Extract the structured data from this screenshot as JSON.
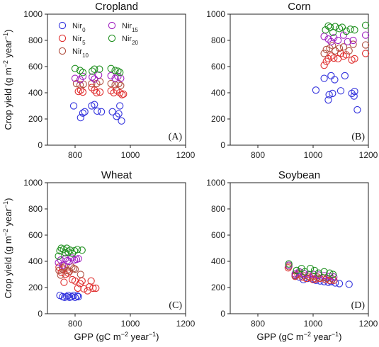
{
  "chart_data": [
    {
      "type": "scatter",
      "panel": "(A)",
      "title": "Cropland",
      "xlabel": "",
      "ylabel": "Crop yield (g m-2 year-1)",
      "xlim": [
        700,
        1200
      ],
      "ylim": [
        0,
        1000
      ],
      "xticks": [
        "800",
        "1000",
        "1200"
      ],
      "yticks": [
        "0",
        "200",
        "400",
        "600",
        "800",
        "1000"
      ],
      "legend": {
        "position": "top",
        "entries": [
          {
            "base": "Nir",
            "sub": "0"
          },
          {
            "base": "Nir",
            "sub": "15"
          },
          {
            "base": "Nir",
            "sub": "5"
          },
          {
            "base": "Nir",
            "sub": "20"
          },
          {
            "base": "Nir",
            "sub": "10"
          }
        ]
      },
      "series": [
        {
          "name": "Nir0",
          "color": "#3333dd",
          "points": [
            [
              795,
              300
            ],
            [
              820,
              210
            ],
            [
              828,
              245
            ],
            [
              835,
              255
            ],
            [
              860,
              300
            ],
            [
              870,
              310
            ],
            [
              880,
              260
            ],
            [
              895,
              255
            ],
            [
              935,
              255
            ],
            [
              950,
              220
            ],
            [
              958,
              240
            ],
            [
              962,
              300
            ],
            [
              968,
              185
            ]
          ]
        },
        {
          "name": "Nir5",
          "color": "#e03030",
          "points": [
            [
              812,
              410
            ],
            [
              820,
              420
            ],
            [
              828,
              405
            ],
            [
              860,
              440
            ],
            [
              870,
              420
            ],
            [
              878,
              400
            ],
            [
              890,
              405
            ],
            [
              930,
              415
            ],
            [
              940,
              400
            ],
            [
              950,
              420
            ],
            [
              962,
              400
            ],
            [
              970,
              385
            ],
            [
              975,
              390
            ]
          ]
        },
        {
          "name": "Nir10",
          "color": "#b05040",
          "points": [
            [
              805,
              470
            ],
            [
              818,
              460
            ],
            [
              830,
              465
            ],
            [
              860,
              470
            ],
            [
              878,
              470
            ],
            [
              890,
              485
            ],
            [
              930,
              470
            ],
            [
              945,
              460
            ],
            [
              958,
              470
            ],
            [
              965,
              455
            ]
          ]
        },
        {
          "name": "Nir15",
          "color": "#a020c0",
          "points": [
            [
              800,
              510
            ],
            [
              818,
              500
            ],
            [
              828,
              525
            ],
            [
              862,
              520
            ],
            [
              870,
              505
            ],
            [
              885,
              535
            ],
            [
              930,
              530
            ],
            [
              945,
              510
            ],
            [
              955,
              525
            ],
            [
              965,
              510
            ]
          ]
        },
        {
          "name": "Nir20",
          "color": "#209020",
          "points": [
            [
              800,
              585
            ],
            [
              818,
              570
            ],
            [
              828,
              555
            ],
            [
              862,
              565
            ],
            [
              870,
              580
            ],
            [
              888,
              580
            ],
            [
              930,
              585
            ],
            [
              945,
              570
            ],
            [
              955,
              565
            ],
            [
              962,
              555
            ]
          ]
        }
      ]
    },
    {
      "type": "scatter",
      "panel": "(B)",
      "title": "Corn",
      "xlabel": "",
      "ylabel": "",
      "xlim": [
        700,
        1200
      ],
      "ylim": [
        0,
        1000
      ],
      "xticks": [
        "800",
        "1000",
        "1200"
      ],
      "yticks": [
        "0",
        "200",
        "400",
        "600",
        "800",
        "1000"
      ],
      "series": [
        {
          "name": "Nir0",
          "color": "#3333dd",
          "points": [
            [
              1010,
              420
            ],
            [
              1040,
              510
            ],
            [
              1055,
              345
            ],
            [
              1058,
              385
            ],
            [
              1065,
              530
            ],
            [
              1070,
              395
            ],
            [
              1078,
              500
            ],
            [
              1100,
              415
            ],
            [
              1115,
              530
            ],
            [
              1140,
              395
            ],
            [
              1148,
              375
            ],
            [
              1150,
              410
            ],
            [
              1160,
              270
            ]
          ]
        },
        {
          "name": "Nir5",
          "color": "#e03030",
          "points": [
            [
              1040,
              610
            ],
            [
              1048,
              640
            ],
            [
              1055,
              660
            ],
            [
              1065,
              680
            ],
            [
              1075,
              665
            ],
            [
              1090,
              660
            ],
            [
              1100,
              700
            ],
            [
              1110,
              680
            ],
            [
              1120,
              690
            ],
            [
              1140,
              650
            ],
            [
              1150,
              660
            ],
            [
              1190,
              700
            ]
          ]
        },
        {
          "name": "Nir10",
          "color": "#b05040",
          "points": [
            [
              1040,
              700
            ],
            [
              1048,
              730
            ],
            [
              1060,
              740
            ],
            [
              1070,
              760
            ],
            [
              1080,
              720
            ],
            [
              1095,
              740
            ],
            [
              1110,
              750
            ],
            [
              1130,
              720
            ],
            [
              1145,
              770
            ],
            [
              1190,
              765
            ]
          ]
        },
        {
          "name": "Nir15",
          "color": "#a020c0",
          "points": [
            [
              1040,
              830
            ],
            [
              1055,
              810
            ],
            [
              1065,
              790
            ],
            [
              1075,
              820
            ],
            [
              1090,
              800
            ],
            [
              1110,
              840
            ],
            [
              1125,
              790
            ],
            [
              1145,
              800
            ],
            [
              1190,
              840
            ]
          ]
        },
        {
          "name": "Nir20",
          "color": "#209020",
          "points": [
            [
              1045,
              880
            ],
            [
              1055,
              910
            ],
            [
              1062,
              900
            ],
            [
              1072,
              860
            ],
            [
              1080,
              905
            ],
            [
              1095,
              890
            ],
            [
              1105,
              900
            ],
            [
              1120,
              870
            ],
            [
              1135,
              885
            ],
            [
              1150,
              880
            ],
            [
              1190,
              915
            ]
          ]
        }
      ]
    },
    {
      "type": "scatter",
      "panel": "(C)",
      "title": "Wheat",
      "xlabel": "GPP (gC m-2 year-1)",
      "ylabel": "Crop yield (g m-2 year-1)",
      "xlim": [
        700,
        1200
      ],
      "ylim": [
        0,
        1000
      ],
      "xticks": [
        "800",
        "1000",
        "1200"
      ],
      "yticks": [
        "0",
        "200",
        "400",
        "600",
        "800",
        "1000"
      ],
      "series": [
        {
          "name": "Nir0",
          "color": "#3333dd",
          "points": [
            [
              745,
              140
            ],
            [
              755,
              130
            ],
            [
              762,
              125
            ],
            [
              770,
              130
            ],
            [
              775,
              140
            ],
            [
              780,
              125
            ],
            [
              788,
              130
            ],
            [
              795,
              140
            ],
            [
              800,
              125
            ],
            [
              808,
              135
            ],
            [
              812,
              130
            ]
          ]
        },
        {
          "name": "Nir5",
          "color": "#e03030",
          "points": [
            [
              742,
              355
            ],
            [
              750,
              315
            ],
            [
              755,
              340
            ],
            [
              760,
              240
            ],
            [
              765,
              300
            ],
            [
              775,
              310
            ],
            [
              790,
              260
            ],
            [
              800,
              250
            ],
            [
              810,
              195
            ],
            [
              818,
              230
            ],
            [
              825,
              250
            ],
            [
              832,
              190
            ],
            [
              845,
              175
            ],
            [
              852,
              205
            ],
            [
              858,
              250
            ],
            [
              865,
              195
            ],
            [
              875,
              195
            ]
          ]
        },
        {
          "name": "Nir10",
          "color": "#b05040",
          "points": [
            [
              742,
              330
            ],
            [
              748,
              295
            ],
            [
              756,
              350
            ],
            [
              762,
              360
            ],
            [
              772,
              330
            ],
            [
              780,
              325
            ],
            [
              788,
              355
            ],
            [
              795,
              345
            ],
            [
              800,
              340
            ],
            [
              820,
              300
            ]
          ]
        },
        {
          "name": "Nir15",
          "color": "#a020c0",
          "points": [
            [
              740,
              390
            ],
            [
              748,
              410
            ],
            [
              755,
              370
            ],
            [
              765,
              420
            ],
            [
              772,
              405
            ],
            [
              778,
              400
            ],
            [
              788,
              425
            ],
            [
              798,
              410
            ],
            [
              805,
              415
            ],
            [
              812,
              420
            ]
          ]
        },
        {
          "name": "Nir20",
          "color": "#209020",
          "points": [
            [
              740,
              440
            ],
            [
              745,
              480
            ],
            [
              750,
              500
            ],
            [
              758,
              490
            ],
            [
              765,
              465
            ],
            [
              770,
              500
            ],
            [
              775,
              470
            ],
            [
              782,
              485
            ],
            [
              790,
              460
            ],
            [
              798,
              480
            ],
            [
              808,
              490
            ],
            [
              825,
              485
            ]
          ]
        }
      ]
    },
    {
      "type": "scatter",
      "panel": "(D)",
      "title": "Soybean",
      "xlabel": "GPP (gC m-2 year-1)",
      "ylabel": "",
      "xlim": [
        700,
        1200
      ],
      "ylim": [
        0,
        1000
      ],
      "xticks": [
        "800",
        "1000",
        "1200"
      ],
      "yticks": [
        "0",
        "200",
        "400",
        "600",
        "800",
        "1000"
      ],
      "series": [
        {
          "name": "Nir0",
          "color": "#3333dd",
          "points": [
            [
              935,
              290
            ],
            [
              950,
              280
            ],
            [
              965,
              260
            ],
            [
              980,
              270
            ],
            [
              1000,
              265
            ],
            [
              1010,
              255
            ],
            [
              1025,
              250
            ],
            [
              1040,
              245
            ],
            [
              1055,
              240
            ],
            [
              1065,
              245
            ],
            [
              1080,
              235
            ],
            [
              1095,
              230
            ],
            [
              1130,
              225
            ]
          ]
        },
        {
          "name": "Nir5",
          "color": "#e03030",
          "points": [
            [
              910,
              350
            ],
            [
              935,
              285
            ],
            [
              945,
              300
            ],
            [
              960,
              280
            ],
            [
              975,
              270
            ],
            [
              990,
              275
            ],
            [
              1000,
              260
            ],
            [
              1010,
              265
            ],
            [
              1025,
              270
            ],
            [
              1045,
              260
            ],
            [
              1060,
              255
            ],
            [
              1075,
              255
            ]
          ]
        },
        {
          "name": "Nir10",
          "color": "#b05040",
          "points": [
            [
              912,
              360
            ],
            [
              935,
              295
            ],
            [
              950,
              310
            ],
            [
              968,
              290
            ],
            [
              985,
              285
            ],
            [
              1000,
              285
            ],
            [
              1015,
              280
            ],
            [
              1035,
              275
            ],
            [
              1050,
              270
            ],
            [
              1070,
              265
            ]
          ]
        },
        {
          "name": "Nir15",
          "color": "#a020c0",
          "points": [
            [
              912,
              370
            ],
            [
              935,
              305
            ],
            [
              950,
              320
            ],
            [
              968,
              305
            ],
            [
              985,
              300
            ],
            [
              1002,
              300
            ],
            [
              1020,
              295
            ],
            [
              1040,
              290
            ],
            [
              1060,
              285
            ],
            [
              1075,
              280
            ]
          ]
        },
        {
          "name": "Nir20",
          "color": "#209020",
          "points": [
            [
              912,
              380
            ],
            [
              940,
              330
            ],
            [
              958,
              345
            ],
            [
              970,
              320
            ],
            [
              990,
              345
            ],
            [
              1005,
              330
            ],
            [
              1020,
              310
            ],
            [
              1040,
              320
            ],
            [
              1060,
              310
            ],
            [
              1072,
              300
            ]
          ]
        }
      ]
    }
  ],
  "figure_text": {
    "ylabel_parts": {
      "main": "Crop yield (g m",
      "sup1": "−2",
      "mid": " year",
      "sup2": "−1",
      "end": ")"
    },
    "xlabel_parts": {
      "main": "GPP (gC m",
      "sup1": "−2",
      "mid": " year",
      "sup2": "−1",
      "end": ")"
    }
  }
}
